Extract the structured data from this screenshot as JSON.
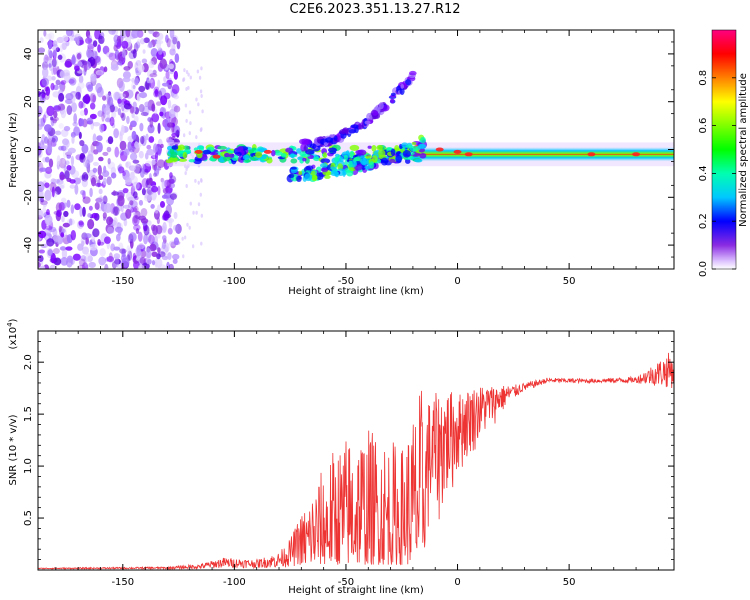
{
  "title": "C2E6.2023.351.13.27.R12",
  "chart_data": [
    {
      "type": "heatmap",
      "name": "spectrogram",
      "xlabel": "Height of straight line (km)",
      "ylabel": "Frequency (Hz)",
      "xlim": [
        -188,
        97
      ],
      "ylim": [
        -50,
        50
      ],
      "xticks": [
        -150,
        -100,
        -50,
        0,
        50
      ],
      "yticks": [
        -40,
        -20,
        0,
        20,
        40
      ],
      "colorbar": {
        "label": "Normalized spectral amplitude",
        "range": [
          0,
          1
        ],
        "ticks": [
          0.0,
          0.2,
          0.4,
          0.6,
          0.8
        ]
      },
      "features": [
        {
          "name": "main-band",
          "x_from": -130,
          "x_to": 97,
          "freq_hz": -2
        },
        {
          "name": "upper-branch",
          "x_from": -70,
          "x_to": -20,
          "freq_start_hz": 2,
          "freq_end_hz": 31
        },
        {
          "name": "lower-branch",
          "x_from": -75,
          "x_to": -15,
          "freq_start_hz": -10,
          "freq_end_hz": 3
        },
        {
          "name": "noise-region",
          "x_from": -188,
          "x_to": -125
        }
      ]
    },
    {
      "type": "line",
      "name": "snr",
      "xlabel": "Height of straight line (km)",
      "ylabel": "SNR (10 * v/v)",
      "yscale_label": "(x10",
      "yscale_exp": "4",
      "yscale_close": ")",
      "xlim": [
        -188,
        97
      ],
      "ylim": [
        0,
        2.3
      ],
      "xticks": [
        -150,
        -100,
        -50,
        0,
        50
      ],
      "yticks": [
        0.5,
        1.0,
        1.5,
        2.0
      ],
      "ytick_labels": [
        "0.5",
        "1.0",
        "1.5",
        "2.0"
      ],
      "series_color": "#ee3333",
      "envelope": [
        {
          "x": -188,
          "low": 0.01,
          "high": 0.02
        },
        {
          "x": -130,
          "low": 0.01,
          "high": 0.03
        },
        {
          "x": -115,
          "low": 0.01,
          "high": 0.06
        },
        {
          "x": -105,
          "low": 0.02,
          "high": 0.12
        },
        {
          "x": -90,
          "low": 0.02,
          "high": 0.1
        },
        {
          "x": -80,
          "low": 0.02,
          "high": 0.17
        },
        {
          "x": -75,
          "low": 0.03,
          "high": 0.3
        },
        {
          "x": -65,
          "low": 0.05,
          "high": 0.8
        },
        {
          "x": -55,
          "low": 0.05,
          "high": 1.2
        },
        {
          "x": -45,
          "low": 0.05,
          "high": 1.4
        },
        {
          "x": -35,
          "low": 0.05,
          "high": 1.35
        },
        {
          "x": -25,
          "low": 0.05,
          "high": 1.2
        },
        {
          "x": -16,
          "low": 0.05,
          "high": 1.8
        },
        {
          "x": -15,
          "low": 0.2,
          "high": 1.6
        },
        {
          "x": -10,
          "low": 0.35,
          "high": 1.7
        },
        {
          "x": -5,
          "low": 0.55,
          "high": 1.75
        },
        {
          "x": 0,
          "low": 0.85,
          "high": 1.7
        },
        {
          "x": 5,
          "low": 1.05,
          "high": 1.75
        },
        {
          "x": 10,
          "low": 1.2,
          "high": 1.78
        },
        {
          "x": 15,
          "low": 1.35,
          "high": 1.78
        },
        {
          "x": 20,
          "low": 1.5,
          "high": 1.78
        },
        {
          "x": 25,
          "low": 1.62,
          "high": 1.78
        },
        {
          "x": 30,
          "low": 1.72,
          "high": 1.8
        },
        {
          "x": 40,
          "low": 1.8,
          "high": 1.85
        },
        {
          "x": 60,
          "low": 1.8,
          "high": 1.84
        },
        {
          "x": 80,
          "low": 1.8,
          "high": 1.86
        },
        {
          "x": 95,
          "low": 1.75,
          "high": 2.1
        }
      ]
    }
  ]
}
